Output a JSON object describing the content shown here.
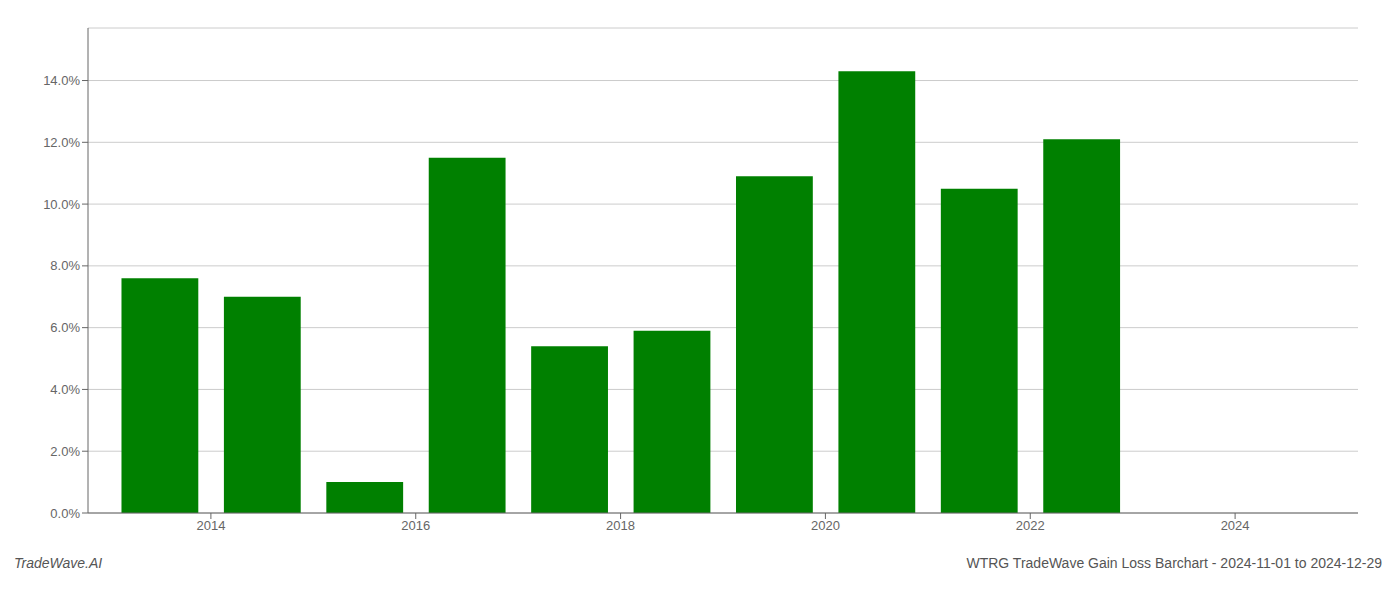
{
  "chart_data": {
    "type": "bar",
    "x": [
      2013,
      2014,
      2015,
      2016,
      2017,
      2018,
      2019,
      2020,
      2021,
      2022
    ],
    "values": [
      0.076,
      0.07,
      0.01,
      0.115,
      0.054,
      0.059,
      0.109,
      0.143,
      0.105,
      0.121
    ],
    "color": "#008000",
    "xlim": [
      2012.3,
      2024.7
    ],
    "xticks": [
      {
        "value": 2013.5,
        "label": "2014"
      },
      {
        "value": 2015.5,
        "label": "2016"
      },
      {
        "value": 2017.5,
        "label": "2018"
      },
      {
        "value": 2019.5,
        "label": "2020"
      },
      {
        "value": 2021.5,
        "label": "2022"
      },
      {
        "value": 2023.5,
        "label": "2024"
      }
    ],
    "ylim": [
      0,
      0.157
    ],
    "yticks": [
      {
        "value": 0,
        "label": "0.0%"
      },
      {
        "value": 0.02,
        "label": "2.0%"
      },
      {
        "value": 0.04,
        "label": "4.0%"
      },
      {
        "value": 0.06,
        "label": "6.0%"
      },
      {
        "value": 0.08,
        "label": "8.0%"
      },
      {
        "value": 0.1,
        "label": "10.0%"
      },
      {
        "value": 0.12,
        "label": "12.0%"
      },
      {
        "value": 0.14,
        "label": "14.0%"
      }
    ],
    "grid": true,
    "annotations": [
      "TradeWave.AI",
      "WTRG TradeWave Gain Loss Barchart - 2024-11-01 to 2024-12-29"
    ]
  }
}
